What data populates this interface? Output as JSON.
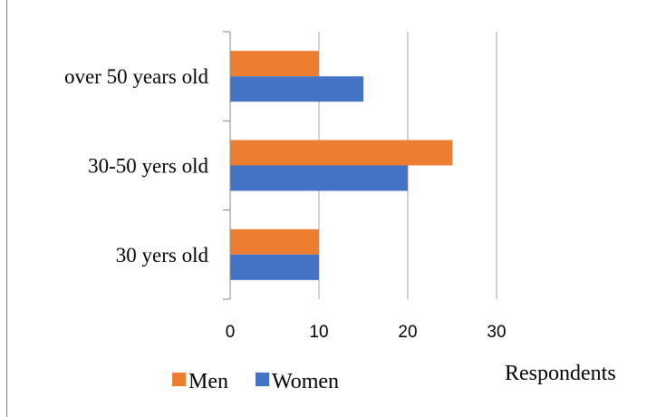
{
  "chart_data": {
    "type": "bar",
    "orientation": "horizontal",
    "title": "",
    "xlabel": "Respondents",
    "ylabel": "",
    "xlim": [
      0,
      30
    ],
    "xticks": [
      "0",
      "10",
      "20",
      "30"
    ],
    "categories": [
      "30 yers old",
      "30-50 yers old",
      "over 50 years old"
    ],
    "series": [
      {
        "name": "Men",
        "color": "#ED7D31",
        "values": [
          10,
          25,
          10
        ]
      },
      {
        "name": "Women",
        "color": "#4472C4",
        "values": [
          10,
          20,
          15
        ]
      }
    ],
    "grid": true,
    "legend": "bottom-left"
  }
}
